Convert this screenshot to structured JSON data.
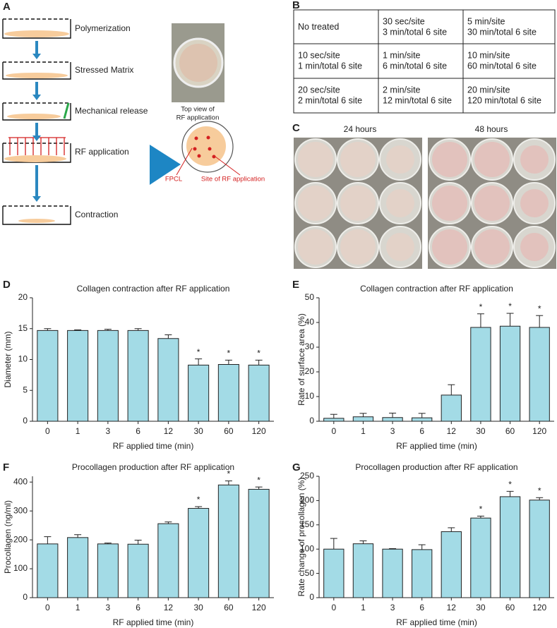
{
  "panel_labels": [
    "A",
    "B",
    "C",
    "D",
    "E",
    "F",
    "G"
  ],
  "panel_a": {
    "steps": [
      "Polymerization",
      "Stressed Matrix",
      "Mechanical release",
      "RF application",
      "Contraction"
    ],
    "photo_caption": [
      "Top view of",
      "RF application"
    ],
    "fpcl": "FPCL",
    "site": "Site of RF application"
  },
  "table": {
    "rows": [
      [
        [
          "No treated"
        ],
        [
          "30 sec/site",
          "3 min/total 6 site"
        ],
        [
          "5 min/site",
          "30 min/total 6 site"
        ]
      ],
      [
        [
          "10 sec/site",
          "1 min/total 6 site"
        ],
        [
          "1 min/site",
          "6 min/total 6 site"
        ],
        [
          "10 min/site",
          "60 min/total 6 site"
        ]
      ],
      [
        [
          "20 sec/site",
          "2 min/total 6 site"
        ],
        [
          "2 min/site",
          "12 min/total 6 site"
        ],
        [
          "20 min/site",
          "120 min/total 6 site"
        ]
      ]
    ]
  },
  "panel_c": {
    "left": "24 hours",
    "right": "48 hours"
  },
  "chart_data": [
    {
      "type": "bar",
      "title": "Collagen contraction after RF application",
      "xlabel": "RF applied time (min)",
      "ylabel": "Diameter (mm)",
      "categories": [
        "0",
        "1",
        "3",
        "6",
        "12",
        "30",
        "60",
        "120"
      ],
      "values": [
        14.7,
        14.7,
        14.7,
        14.7,
        13.4,
        9.1,
        9.2,
        9.1
      ],
      "errors": [
        0.3,
        0.1,
        0.2,
        0.3,
        0.6,
        1.0,
        0.7,
        0.8
      ],
      "color": "#a3dbe6",
      "ylim": [
        0,
        20
      ],
      "yticks": [
        0,
        5,
        10,
        15,
        20
      ],
      "annotations": [
        {
          "category": "30",
          "text": "*"
        },
        {
          "category": "60",
          "text": "*"
        },
        {
          "category": "120",
          "text": "*"
        }
      ]
    },
    {
      "type": "bar",
      "title": "Collagen contraction after RF application",
      "xlabel": "RF applied time (min)",
      "ylabel": "Rate of surface area (%)",
      "categories": [
        "0",
        "1",
        "3",
        "6",
        "12",
        "30",
        "60",
        "120"
      ],
      "values": [
        1.2,
        1.8,
        1.5,
        1.4,
        10.6,
        38,
        38.5,
        38
      ],
      "errors": [
        1.6,
        1.4,
        1.8,
        1.8,
        4.2,
        5.5,
        5.2,
        4.8
      ],
      "color": "#a3dbe6",
      "ylim": [
        0,
        50
      ],
      "yticks": [
        0,
        10,
        20,
        30,
        40,
        50
      ],
      "annotations": [
        {
          "category": "30",
          "text": "*"
        },
        {
          "category": "60",
          "text": "*"
        },
        {
          "category": "120",
          "text": "*"
        }
      ]
    },
    {
      "type": "bar",
      "title": "Procollagen production after RF application",
      "xlabel": "RF applied time (min)",
      "ylabel": "Procollagen (ng/ml)",
      "categories": [
        "0",
        "1",
        "3",
        "6",
        "12",
        "30",
        "60",
        "120"
      ],
      "values": [
        186,
        208,
        186,
        185,
        256,
        309,
        390,
        375
      ],
      "errors": [
        25,
        10,
        3,
        14,
        6,
        6,
        14,
        8
      ],
      "color": "#a3dbe6",
      "ylim": [
        0,
        420
      ],
      "yticks": [
        0,
        100,
        200,
        300,
        400
      ],
      "annotations": [
        {
          "category": "30",
          "text": "*"
        },
        {
          "category": "60",
          "text": "*"
        },
        {
          "category": "120",
          "text": "*"
        }
      ]
    },
    {
      "type": "bar",
      "title": "Procollagen production after RF application",
      "xlabel": "RF applied time (min)",
      "ylabel": "Rate change of procollagen (%)",
      "categories": [
        "0",
        "1",
        "3",
        "6",
        "12",
        "30",
        "60",
        "120"
      ],
      "values": [
        100,
        111,
        100,
        99,
        136,
        164,
        208,
        201
      ],
      "errors": [
        22,
        6,
        1,
        10,
        8,
        4,
        11,
        5
      ],
      "color": "#a3dbe6",
      "ylim": [
        0,
        250
      ],
      "yticks": [
        0,
        50,
        100,
        150,
        200,
        250
      ],
      "annotations": [
        {
          "category": "30",
          "text": "*"
        },
        {
          "category": "60",
          "text": "*"
        },
        {
          "category": "120",
          "text": "*"
        }
      ]
    }
  ]
}
